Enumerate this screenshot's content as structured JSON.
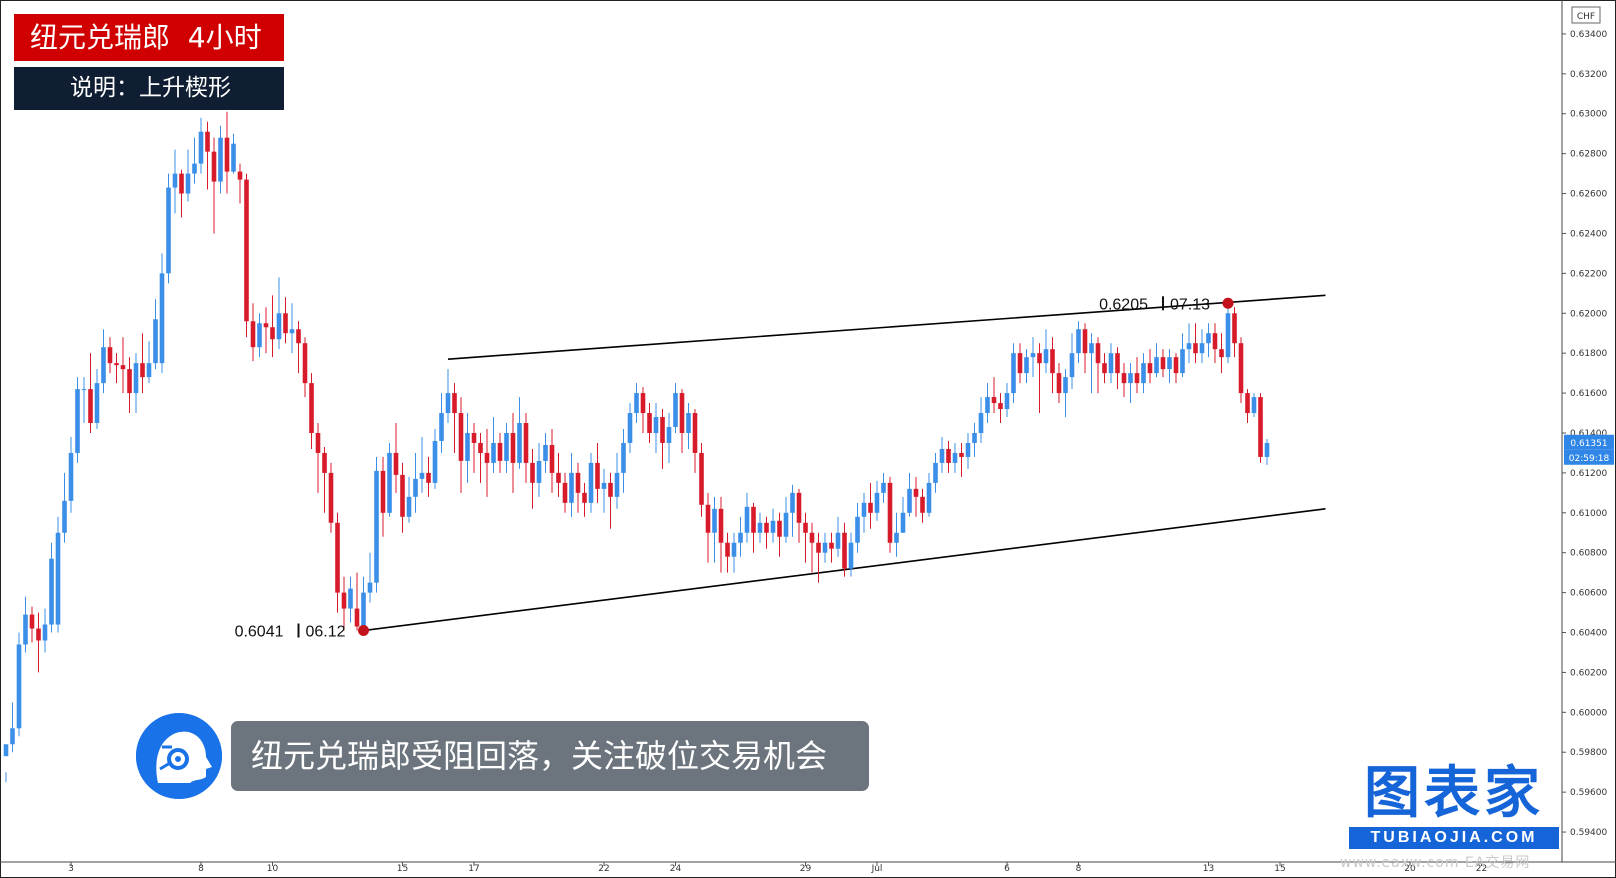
{
  "header": {
    "title": "纽元兑瑞郎  4小时",
    "description": "说明：上升楔形"
  },
  "caption": "纽元兑瑞郎受阻回落，关注破位交易机会",
  "brand": {
    "main": "图表家",
    "sub": "TUBIAOJIA.COM"
  },
  "watermark": "www.eaxw.com  EA交易网",
  "colors": {
    "up": "#3b8fe8",
    "down": "#d81b2b",
    "title_bg": "#d00000",
    "desc_bg": "#0f1e33",
    "caption_bg": "#6c757d",
    "brand": "#1665d8",
    "marker": "#c4121c"
  },
  "chart_data": {
    "type": "candlestick",
    "symbol": "NZDCHF",
    "timeframe": "4H",
    "currency_label": "CHF",
    "ylim": [
      0.593,
      0.6355
    ],
    "y_ticks": [
      "0.63400",
      "0.63200",
      "0.63000",
      "0.62800",
      "0.62600",
      "0.62400",
      "0.62200",
      "0.62000",
      "0.61800",
      "0.61600",
      "0.61400",
      "0.61200",
      "0.61000",
      "0.60800",
      "0.60600",
      "0.60400",
      "0.60200",
      "0.60000",
      "0.59800",
      "0.59600",
      "0.59400"
    ],
    "x_ticks": [
      {
        "label": "3",
        "bar": 10
      },
      {
        "label": "8",
        "bar": 30
      },
      {
        "label": "10",
        "bar": 41
      },
      {
        "label": "15",
        "bar": 61
      },
      {
        "label": "17",
        "bar": 72
      },
      {
        "label": "22",
        "bar": 92
      },
      {
        "label": "24",
        "bar": 103
      },
      {
        "label": "29",
        "bar": 123
      },
      {
        "label": "Jul",
        "bar": 134
      },
      {
        "label": "6",
        "bar": 154
      },
      {
        "label": "8",
        "bar": 165
      },
      {
        "label": "13",
        "bar": 185
      },
      {
        "label": "15",
        "bar": 196
      },
      {
        "label": "20",
        "bar": 216
      },
      {
        "label": "22",
        "bar": 227
      }
    ],
    "last_price": "0.61351",
    "countdown": "02:59:18",
    "annotations": [
      {
        "price": "0.6041",
        "date": "06.12",
        "bar": 55,
        "value": 0.6041
      },
      {
        "price": "0.6205",
        "date": "07.13",
        "bar": 188,
        "value": 0.6205
      }
    ],
    "wedge": {
      "upper": [
        {
          "bar": 68,
          "value": 0.6177
        },
        {
          "bar": 203,
          "value": 0.6209
        }
      ],
      "lower": [
        {
          "bar": 55,
          "value": 0.6041
        },
        {
          "bar": 203,
          "value": 0.6102
        }
      ]
    },
    "candles": [
      [
        0.5978,
        0.5984,
        0.597,
        0.5965
      ],
      [
        0.5984,
        0.5992,
        0.6005,
        0.598
      ],
      [
        0.5992,
        0.6034,
        0.604,
        0.5988
      ],
      [
        0.6034,
        0.6049,
        0.6058,
        0.603
      ],
      [
        0.6049,
        0.6042,
        0.6053,
        0.6035
      ],
      [
        0.6042,
        0.6036,
        0.605,
        0.602
      ],
      [
        0.6036,
        0.6044,
        0.6052,
        0.603
      ],
      [
        0.6044,
        0.6077,
        0.6085,
        0.604
      ],
      [
        0.6044,
        0.609,
        0.6098,
        0.604
      ],
      [
        0.609,
        0.6106,
        0.612,
        0.6085
      ],
      [
        0.6106,
        0.613,
        0.6138,
        0.61
      ],
      [
        0.613,
        0.6162,
        0.6168,
        0.6125
      ],
      [
        0.6162,
        0.6162,
        0.6168,
        0.6145
      ],
      [
        0.6162,
        0.6145,
        0.618,
        0.614
      ],
      [
        0.6145,
        0.6165,
        0.6172,
        0.6142
      ],
      [
        0.6165,
        0.6183,
        0.6192,
        0.616
      ],
      [
        0.6183,
        0.6175,
        0.6188,
        0.617
      ],
      [
        0.6175,
        0.6174,
        0.618,
        0.6165
      ],
      [
        0.6174,
        0.6172,
        0.6188,
        0.616
      ],
      [
        0.6172,
        0.616,
        0.6178,
        0.615
      ],
      [
        0.616,
        0.6175,
        0.618,
        0.615
      ],
      [
        0.6175,
        0.6168,
        0.619,
        0.616
      ],
      [
        0.6168,
        0.6175,
        0.6186,
        0.6165
      ],
      [
        0.6175,
        0.6197,
        0.6207,
        0.6172
      ],
      [
        0.6175,
        0.622,
        0.623,
        0.617
      ],
      [
        0.622,
        0.6263,
        0.627,
        0.6215
      ],
      [
        0.6263,
        0.627,
        0.6282,
        0.625
      ],
      [
        0.627,
        0.626,
        0.6272,
        0.6248
      ],
      [
        0.626,
        0.627,
        0.6282,
        0.6256
      ],
      [
        0.627,
        0.6275,
        0.6288,
        0.6265
      ],
      [
        0.6275,
        0.6291,
        0.6298,
        0.627
      ],
      [
        0.6291,
        0.6281,
        0.6296,
        0.6262
      ],
      [
        0.6281,
        0.6266,
        0.6288,
        0.624
      ],
      [
        0.6266,
        0.6288,
        0.6294,
        0.626
      ],
      [
        0.6288,
        0.6271,
        0.6301,
        0.626
      ],
      [
        0.6271,
        0.6285,
        0.629,
        0.627
      ],
      [
        0.6271,
        0.6267,
        0.6275,
        0.6255
      ],
      [
        0.6267,
        0.6196,
        0.627,
        0.6188
      ],
      [
        0.6196,
        0.6183,
        0.6205,
        0.6176
      ],
      [
        0.6183,
        0.6195,
        0.62,
        0.6178
      ],
      [
        0.6195,
        0.6193,
        0.6203,
        0.618
      ],
      [
        0.6193,
        0.6187,
        0.6209,
        0.6178
      ],
      [
        0.6187,
        0.62,
        0.6218,
        0.6182
      ],
      [
        0.62,
        0.619,
        0.6208,
        0.6185
      ],
      [
        0.619,
        0.6192,
        0.6205,
        0.618
      ],
      [
        0.6192,
        0.6185,
        0.6196,
        0.617
      ],
      [
        0.6185,
        0.6165,
        0.6188,
        0.6158
      ],
      [
        0.6165,
        0.614,
        0.617,
        0.6132
      ],
      [
        0.614,
        0.613,
        0.6145,
        0.611
      ],
      [
        0.613,
        0.612,
        0.6133,
        0.61
      ],
      [
        0.612,
        0.6095,
        0.6125,
        0.609
      ],
      [
        0.6095,
        0.606,
        0.61,
        0.605
      ],
      [
        0.606,
        0.6052,
        0.6068,
        0.6041
      ],
      [
        0.6052,
        0.6062,
        0.6068,
        0.6045
      ],
      [
        0.6052,
        0.6043,
        0.607,
        0.6041
      ],
      [
        0.6043,
        0.606,
        0.6068,
        0.6041
      ],
      [
        0.606,
        0.6065,
        0.608,
        0.6055
      ],
      [
        0.6065,
        0.6121,
        0.6128,
        0.606
      ],
      [
        0.6121,
        0.61,
        0.6128,
        0.6088
      ],
      [
        0.61,
        0.613,
        0.6135,
        0.6098
      ],
      [
        0.613,
        0.6119,
        0.6145,
        0.611
      ],
      [
        0.6119,
        0.6098,
        0.6125,
        0.609
      ],
      [
        0.6098,
        0.6108,
        0.6118,
        0.6095
      ],
      [
        0.6108,
        0.6117,
        0.613,
        0.61
      ],
      [
        0.6117,
        0.612,
        0.6138,
        0.611
      ],
      [
        0.612,
        0.6115,
        0.6128,
        0.6108
      ],
      [
        0.6115,
        0.6136,
        0.6142,
        0.6112
      ],
      [
        0.6136,
        0.615,
        0.616,
        0.613
      ],
      [
        0.615,
        0.616,
        0.6172,
        0.6145
      ],
      [
        0.616,
        0.615,
        0.6165,
        0.613
      ],
      [
        0.615,
        0.6126,
        0.6158,
        0.611
      ],
      [
        0.6126,
        0.614,
        0.615,
        0.6115
      ],
      [
        0.614,
        0.6135,
        0.6145,
        0.612
      ],
      [
        0.6135,
        0.613,
        0.614,
        0.6115
      ],
      [
        0.613,
        0.6125,
        0.6142,
        0.6108
      ],
      [
        0.6125,
        0.6135,
        0.6148,
        0.612
      ],
      [
        0.6135,
        0.6126,
        0.614,
        0.612
      ],
      [
        0.6126,
        0.614,
        0.6145,
        0.612
      ],
      [
        0.614,
        0.6125,
        0.615,
        0.611
      ],
      [
        0.6125,
        0.6145,
        0.6158,
        0.6122
      ],
      [
        0.6145,
        0.6125,
        0.615,
        0.6115
      ],
      [
        0.6125,
        0.6115,
        0.6132,
        0.6102
      ],
      [
        0.6115,
        0.6126,
        0.6135,
        0.6108
      ],
      [
        0.6126,
        0.6134,
        0.614,
        0.612
      ],
      [
        0.6134,
        0.612,
        0.6142,
        0.611
      ],
      [
        0.612,
        0.6115,
        0.613,
        0.6108
      ],
      [
        0.6115,
        0.6105,
        0.612,
        0.61
      ],
      [
        0.6105,
        0.612,
        0.613,
        0.6098
      ],
      [
        0.612,
        0.611,
        0.6125,
        0.61
      ],
      [
        0.611,
        0.6105,
        0.6115,
        0.6098
      ],
      [
        0.6105,
        0.6125,
        0.613,
        0.61
      ],
      [
        0.6125,
        0.6112,
        0.6135,
        0.6105
      ],
      [
        0.6112,
        0.6115,
        0.6122,
        0.61
      ],
      [
        0.6115,
        0.6108,
        0.612,
        0.6092
      ],
      [
        0.6108,
        0.612,
        0.613,
        0.6102
      ],
      [
        0.612,
        0.6135,
        0.6142,
        0.611
      ],
      [
        0.6135,
        0.615,
        0.6155,
        0.613
      ],
      [
        0.615,
        0.616,
        0.6165,
        0.6145
      ],
      [
        0.616,
        0.615,
        0.6163,
        0.614
      ],
      [
        0.615,
        0.614,
        0.6155,
        0.6135
      ],
      [
        0.614,
        0.6148,
        0.6155,
        0.613
      ],
      [
        0.6148,
        0.6135,
        0.6152,
        0.6122
      ],
      [
        0.6135,
        0.6143,
        0.615,
        0.6125
      ],
      [
        0.6143,
        0.616,
        0.6165,
        0.614
      ],
      [
        0.616,
        0.614,
        0.6162,
        0.613
      ],
      [
        0.614,
        0.615,
        0.6155,
        0.6132
      ],
      [
        0.615,
        0.613,
        0.6152,
        0.612
      ],
      [
        0.613,
        0.6104,
        0.6135,
        0.6098
      ],
      [
        0.6104,
        0.609,
        0.611,
        0.6075
      ],
      [
        0.609,
        0.6102,
        0.6108,
        0.6075
      ],
      [
        0.6102,
        0.6085,
        0.6108,
        0.607
      ],
      [
        0.6085,
        0.6078,
        0.609,
        0.607
      ],
      [
        0.6078,
        0.6085,
        0.609,
        0.607
      ],
      [
        0.6085,
        0.609,
        0.6098,
        0.6078
      ],
      [
        0.609,
        0.6103,
        0.611,
        0.6085
      ],
      [
        0.6103,
        0.609,
        0.6105,
        0.608
      ],
      [
        0.609,
        0.6095,
        0.61,
        0.6085
      ],
      [
        0.6095,
        0.609,
        0.6098,
        0.6082
      ],
      [
        0.609,
        0.6096,
        0.6102,
        0.6085
      ],
      [
        0.6096,
        0.6088,
        0.61,
        0.6078
      ],
      [
        0.6088,
        0.61,
        0.6108,
        0.6085
      ],
      [
        0.61,
        0.611,
        0.6114,
        0.6088
      ],
      [
        0.611,
        0.6095,
        0.6112,
        0.6085
      ],
      [
        0.6095,
        0.609,
        0.61,
        0.6075
      ],
      [
        0.609,
        0.6085,
        0.6095,
        0.607
      ],
      [
        0.6085,
        0.608,
        0.609,
        0.6065
      ],
      [
        0.608,
        0.6085,
        0.609,
        0.6075
      ],
      [
        0.6085,
        0.6082,
        0.609,
        0.6075
      ],
      [
        0.6082,
        0.609,
        0.6098,
        0.6078
      ],
      [
        0.609,
        0.6072,
        0.6095,
        0.6068
      ],
      [
        0.6072,
        0.6085,
        0.609,
        0.6068
      ],
      [
        0.6085,
        0.6098,
        0.6105,
        0.608
      ],
      [
        0.6098,
        0.6105,
        0.611,
        0.609
      ],
      [
        0.6105,
        0.61,
        0.6115,
        0.6092
      ],
      [
        0.61,
        0.611,
        0.6116,
        0.6096
      ],
      [
        0.611,
        0.6115,
        0.612,
        0.6105
      ],
      [
        0.6115,
        0.6085,
        0.6118,
        0.608
      ],
      [
        0.6085,
        0.609,
        0.61,
        0.6078
      ],
      [
        0.609,
        0.61,
        0.6108,
        0.609
      ],
      [
        0.61,
        0.6112,
        0.612,
        0.6098
      ],
      [
        0.6112,
        0.6108,
        0.6118,
        0.6098
      ],
      [
        0.6108,
        0.61,
        0.6112,
        0.6095
      ],
      [
        0.61,
        0.6115,
        0.612,
        0.6098
      ],
      [
        0.6115,
        0.6125,
        0.613,
        0.611
      ],
      [
        0.6125,
        0.6132,
        0.6138,
        0.612
      ],
      [
        0.6132,
        0.6125,
        0.6136,
        0.612
      ],
      [
        0.6125,
        0.613,
        0.6135,
        0.612
      ],
      [
        0.613,
        0.6128,
        0.6135,
        0.6118
      ],
      [
        0.6128,
        0.6135,
        0.614,
        0.6122
      ],
      [
        0.6135,
        0.614,
        0.6145,
        0.6128
      ],
      [
        0.614,
        0.615,
        0.6158,
        0.6135
      ],
      [
        0.615,
        0.6158,
        0.6165,
        0.6145
      ],
      [
        0.6158,
        0.6155,
        0.6168,
        0.615
      ],
      [
        0.6155,
        0.6152,
        0.616,
        0.6145
      ],
      [
        0.6152,
        0.616,
        0.6165,
        0.6148
      ],
      [
        0.616,
        0.618,
        0.6185,
        0.6155
      ],
      [
        0.618,
        0.617,
        0.6185,
        0.6165
      ],
      [
        0.617,
        0.6178,
        0.6182,
        0.6165
      ],
      [
        0.6178,
        0.618,
        0.6188,
        0.6168
      ],
      [
        0.618,
        0.6175,
        0.6185,
        0.615
      ],
      [
        0.6175,
        0.6182,
        0.6192,
        0.617
      ],
      [
        0.6182,
        0.617,
        0.6188,
        0.616
      ],
      [
        0.617,
        0.616,
        0.6175,
        0.6155
      ],
      [
        0.616,
        0.6168,
        0.6172,
        0.6148
      ],
      [
        0.6168,
        0.618,
        0.619,
        0.6162
      ],
      [
        0.618,
        0.6192,
        0.6196,
        0.6175
      ],
      [
        0.6192,
        0.618,
        0.6195,
        0.617
      ],
      [
        0.618,
        0.6185,
        0.619,
        0.616
      ],
      [
        0.6185,
        0.6175,
        0.6188,
        0.616
      ],
      [
        0.6175,
        0.617,
        0.618,
        0.6165
      ],
      [
        0.617,
        0.618,
        0.6185,
        0.6165
      ],
      [
        0.618,
        0.617,
        0.6183,
        0.6162
      ],
      [
        0.617,
        0.6165,
        0.6175,
        0.6158
      ],
      [
        0.6165,
        0.617,
        0.6175,
        0.6155
      ],
      [
        0.617,
        0.6165,
        0.6178,
        0.616
      ],
      [
        0.6165,
        0.6175,
        0.618,
        0.616
      ],
      [
        0.6175,
        0.617,
        0.6182,
        0.6165
      ],
      [
        0.617,
        0.6178,
        0.6185,
        0.6168
      ],
      [
        0.6178,
        0.6172,
        0.6182,
        0.6168
      ],
      [
        0.6172,
        0.6178,
        0.6182,
        0.6165
      ],
      [
        0.6178,
        0.617,
        0.618,
        0.6165
      ],
      [
        0.617,
        0.6182,
        0.619,
        0.6168
      ],
      [
        0.6182,
        0.6185,
        0.6195,
        0.6175
      ],
      [
        0.6185,
        0.618,
        0.6195,
        0.6175
      ],
      [
        0.618,
        0.6185,
        0.6192,
        0.6175
      ],
      [
        0.6185,
        0.619,
        0.6195,
        0.6178
      ],
      [
        0.619,
        0.6182,
        0.6195,
        0.6175
      ],
      [
        0.6182,
        0.6178,
        0.619,
        0.617
      ],
      [
        0.6178,
        0.62,
        0.6205,
        0.6175
      ],
      [
        0.62,
        0.6185,
        0.6203,
        0.6178
      ],
      [
        0.6185,
        0.616,
        0.6188,
        0.6155
      ],
      [
        0.616,
        0.615,
        0.6162,
        0.6145
      ],
      [
        0.615,
        0.6158,
        0.616,
        0.6148
      ],
      [
        0.6158,
        0.6128,
        0.616,
        0.6125
      ],
      [
        0.6128,
        0.6135,
        0.6137,
        0.6124
      ]
    ]
  }
}
